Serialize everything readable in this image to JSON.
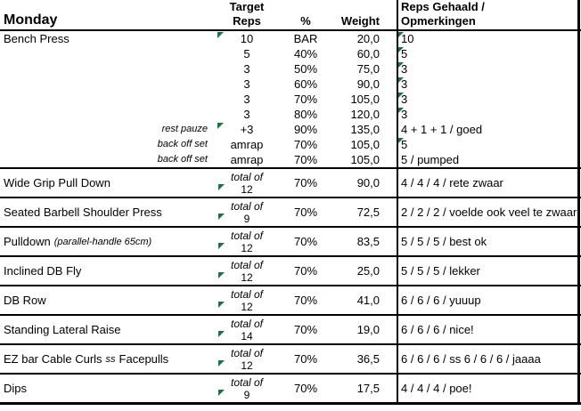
{
  "title": "Monday",
  "columns": {
    "target_line1": "Target",
    "target_line2": "Reps",
    "pct": "%",
    "weight": "Weight",
    "reps_line1": "Reps Gehaald /",
    "reps_line2": "Opmerkingen"
  },
  "bench": {
    "rows": [
      {
        "exercise": "Bench Press",
        "label": "",
        "target": "10",
        "pct": "BAR",
        "weight": "20,0",
        "result": "10",
        "flag_left": true,
        "flag_result": true
      },
      {
        "label": "",
        "target": "5",
        "pct": "40%",
        "weight": "60,0",
        "result": "5",
        "flag_left": false,
        "flag_result": true
      },
      {
        "label": "",
        "target": "3",
        "pct": "50%",
        "weight": "75,0",
        "result": "3",
        "flag_left": false,
        "flag_result": true
      },
      {
        "label": "",
        "target": "3",
        "pct": "60%",
        "weight": "90,0",
        "result": "3",
        "flag_left": false,
        "flag_result": true
      },
      {
        "label": "",
        "target": "3",
        "pct": "70%",
        "weight": "105,0",
        "result": "3",
        "flag_left": false,
        "flag_result": true
      },
      {
        "label": "",
        "target": "3",
        "pct": "80%",
        "weight": "120,0",
        "result": "3",
        "flag_left": false,
        "flag_result": true
      },
      {
        "label": "rest pauze",
        "target": "+3",
        "pct": "90%",
        "weight": "135,0",
        "result": "4 + 1 + 1  / goed",
        "flag_left": true,
        "flag_result": false
      },
      {
        "label": "back off set",
        "target": "amrap",
        "pct": "70%",
        "weight": "105,0",
        "result": "5",
        "flag_left": false,
        "flag_result": true
      },
      {
        "label": "back off set",
        "target": "amrap",
        "pct": "70%",
        "weight": "105,0",
        "result": "5 / pumped",
        "flag_left": false,
        "flag_result": false
      }
    ]
  },
  "exercises": [
    {
      "name": "Wide Grip Pull Down",
      "note": "",
      "name_suffix": "",
      "target_prefix": "total of",
      "target": "12",
      "pct": "70%",
      "weight": "90,0",
      "result": "4 / 4 / 4 / rete zwaar"
    },
    {
      "name": "Seated Barbell Shoulder Press",
      "note": "",
      "name_suffix": "",
      "target_prefix": "total of",
      "target": "9",
      "pct": "70%",
      "weight": "72,5",
      "result": "2 / 2 / 2 / voelde ook veel te zwaar"
    },
    {
      "name": "Pulldown",
      "note": "(parallel-handle 65cm)",
      "name_suffix": "",
      "target_prefix": "total of",
      "target": "12",
      "pct": "70%",
      "weight": "83,5",
      "result": "5 / 5 / 5 / best ok"
    },
    {
      "name": "Inclined DB Fly",
      "note": "",
      "name_suffix": "",
      "target_prefix": "total of",
      "target": "12",
      "pct": "70%",
      "weight": "25,0",
      "result": "5 / 5 / 5 / lekker"
    },
    {
      "name": "DB Row",
      "note": "",
      "name_suffix": "",
      "target_prefix": "total of",
      "target": "12",
      "pct": "70%",
      "weight": "41,0",
      "result": "6 / 6 / 6 / yuuup"
    },
    {
      "name": "Standing Lateral Raise",
      "note": "",
      "name_suffix": "",
      "target_prefix": "total of",
      "target": "14",
      "pct": "70%",
      "weight": "19,0",
      "result": "6 / 6 / 6 / nice!"
    },
    {
      "name": "EZ bar Cable Curls",
      "note": "ss",
      "name_suffix": "Facepulls",
      "target_prefix": "total of",
      "target": "12",
      "pct": "70%",
      "weight": "36,5",
      "result": "6 / 6 / 6 / ss 6 / 6 / 6 / jaaaa"
    },
    {
      "name": "Dips",
      "note": "",
      "name_suffix": "",
      "target_prefix": "total of",
      "target": "9",
      "pct": "70%",
      "weight": "17,5",
      "result": "4 / 4 / 4 / poe!"
    }
  ],
  "colors": {
    "flag_green": "#1f7145",
    "border": "#000000",
    "background": "#ffffff"
  }
}
